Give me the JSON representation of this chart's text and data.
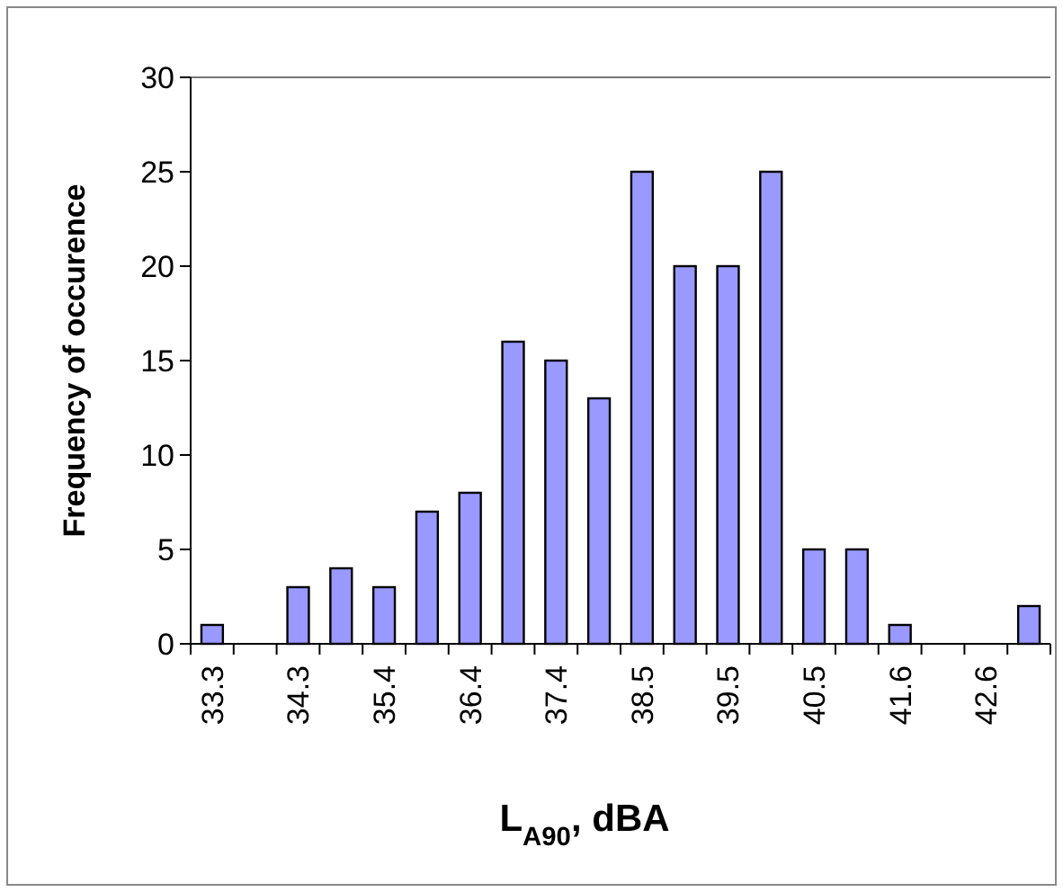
{
  "chart_data": {
    "type": "bar",
    "xlabel": "L$_{A90}$, dBA",
    "ylabel": "Frequency of occurence",
    "categories": [
      "33.3",
      null,
      "34.3",
      null,
      "35.4",
      null,
      "36.4",
      null,
      "37.4",
      null,
      "38.5",
      null,
      "39.5",
      null,
      "40.5",
      null,
      "41.6",
      null,
      "42.6",
      null
    ],
    "values": [
      1,
      0,
      3,
      4,
      3,
      7,
      8,
      16,
      15,
      13,
      25,
      20,
      20,
      25,
      5,
      5,
      1,
      0,
      0,
      2
    ],
    "color": "#9999ff",
    "ylim": [
      0,
      30
    ],
    "yticks": [
      0,
      5,
      10,
      15,
      20,
      25,
      30
    ],
    "grid": false
  }
}
